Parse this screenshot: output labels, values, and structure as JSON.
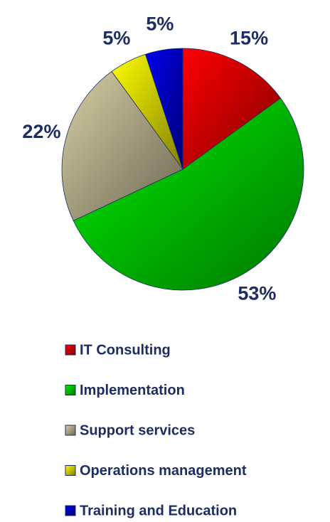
{
  "chart_data": {
    "type": "pie",
    "categories": [
      "IT Consulting",
      "Implementation",
      "Support services",
      "Operations management",
      "Training and Education"
    ],
    "values": [
      15,
      53,
      22,
      5,
      5
    ],
    "value_labels": [
      "15%",
      "53%",
      "22%",
      "5%",
      "5%"
    ],
    "colors": [
      "#ff0000",
      "#00ee00",
      "#d8cfa6",
      "#ffff00",
      "#0000ee"
    ],
    "legend": "bottom"
  }
}
